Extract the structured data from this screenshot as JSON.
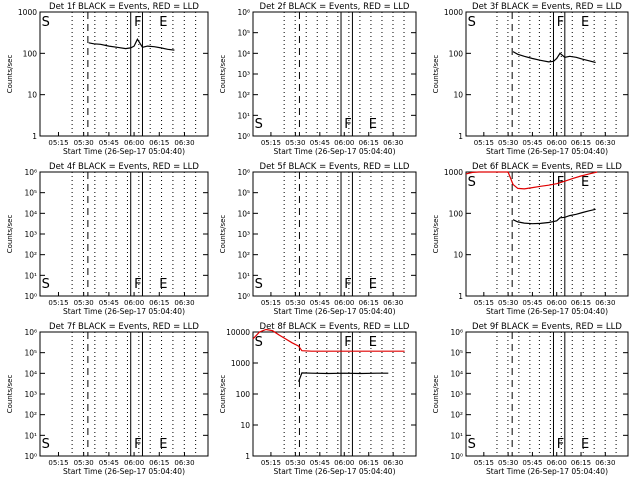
{
  "chart_data": [
    {
      "type": "line",
      "title": "Det 1f BLACK = Events, RED = LLD",
      "xlabel": "Start Time (26-Sep-17 05:04:40)",
      "ylabel": "Counts/sec",
      "log_y": true,
      "x_range": [
        "05:04",
        "06:44"
      ],
      "y_range": [
        1,
        1000
      ],
      "y_ticks": [
        "1",
        "10",
        "100",
        "1000"
      ],
      "x_ticks": [
        "05:15",
        "05:30",
        "05:45",
        "06:00",
        "06:15",
        "06:30"
      ],
      "markers": [
        {
          "label": "S",
          "x": "05:05"
        },
        {
          "label": "F",
          "x": "06:00"
        },
        {
          "label": "E",
          "x": "06:15"
        }
      ],
      "series": [
        {
          "color": "#000000",
          "x": [
            "05:33",
            "05:36",
            "05:40",
            "05:45",
            "05:50",
            "05:55",
            "05:58",
            "06:00",
            "06:02",
            "06:05",
            "06:08",
            "06:12",
            "06:16",
            "06:20",
            "06:24"
          ],
          "values": [
            180,
            170,
            165,
            150,
            140,
            130,
            135,
            150,
            220,
            140,
            150,
            145,
            135,
            125,
            120
          ]
        }
      ]
    },
    {
      "type": "line",
      "title": "Det 2f BLACK = Events, RED = LLD",
      "xlabel": "Start Time (26-Sep-17 05:04:40)",
      "ylabel": "Counts/sec",
      "log_y": true,
      "x_range": [
        "05:04",
        "06:44"
      ],
      "y_range": [
        1,
        1000000
      ],
      "y_ticks": [
        "10⁰",
        "10¹",
        "10²",
        "10³",
        "10⁴",
        "10⁵",
        "10⁶"
      ],
      "x_ticks": [
        "05:15",
        "05:30",
        "05:45",
        "06:00",
        "06:15",
        "06:30"
      ],
      "markers": [
        {
          "label": "S",
          "x": "05:05"
        },
        {
          "label": "F",
          "x": "06:00"
        },
        {
          "label": "E",
          "x": "06:15"
        }
      ],
      "series": []
    },
    {
      "type": "line",
      "title": "Det 3f BLACK = Events, RED = LLD",
      "xlabel": "Start Time (26-Sep-17 05:04:40)",
      "ylabel": "Counts/sec",
      "log_y": true,
      "x_range": [
        "05:04",
        "06:44"
      ],
      "y_range": [
        1,
        1000
      ],
      "y_ticks": [
        "1",
        "10",
        "100",
        "1000"
      ],
      "x_ticks": [
        "05:15",
        "05:30",
        "05:45",
        "06:00",
        "06:15",
        "06:30"
      ],
      "markers": [
        {
          "label": "S",
          "x": "05:05"
        },
        {
          "label": "F",
          "x": "06:00"
        },
        {
          "label": "E",
          "x": "06:15"
        }
      ],
      "series": [
        {
          "color": "#000000",
          "x": [
            "05:33",
            "05:36",
            "05:40",
            "05:45",
            "05:50",
            "05:55",
            "05:58",
            "06:00",
            "06:02",
            "06:05",
            "06:08",
            "06:12",
            "06:16",
            "06:20",
            "06:24"
          ],
          "values": [
            110,
            95,
            85,
            75,
            68,
            62,
            64,
            75,
            100,
            80,
            85,
            80,
            72,
            66,
            60
          ]
        }
      ]
    },
    {
      "type": "line",
      "title": "Det 4f BLACK = Events, RED = LLD",
      "xlabel": "Start Time (26-Sep-17 05:04:40)",
      "ylabel": "Counts/sec",
      "log_y": true,
      "x_range": [
        "05:04",
        "06:44"
      ],
      "y_range": [
        1,
        1000000
      ],
      "y_ticks": [
        "10⁰",
        "10¹",
        "10²",
        "10³",
        "10⁴",
        "10⁵",
        "10⁶"
      ],
      "x_ticks": [
        "05:15",
        "05:30",
        "05:45",
        "06:00",
        "06:15",
        "06:30"
      ],
      "markers": [
        {
          "label": "S",
          "x": "05:05"
        },
        {
          "label": "F",
          "x": "06:00"
        },
        {
          "label": "E",
          "x": "06:15"
        }
      ],
      "series": []
    },
    {
      "type": "line",
      "title": "Det 5f BLACK = Events, RED = LLD",
      "xlabel": "Start Time (26-Sep-17 05:04:40)",
      "ylabel": "Counts/sec",
      "log_y": true,
      "x_range": [
        "05:04",
        "06:44"
      ],
      "y_range": [
        1,
        1000000
      ],
      "y_ticks": [
        "10⁰",
        "10¹",
        "10²",
        "10³",
        "10⁴",
        "10⁵",
        "10⁶"
      ],
      "x_ticks": [
        "05:15",
        "05:30",
        "05:45",
        "06:00",
        "06:15",
        "06:30"
      ],
      "markers": [
        {
          "label": "S",
          "x": "05:05"
        },
        {
          "label": "F",
          "x": "06:00"
        },
        {
          "label": "E",
          "x": "06:15"
        }
      ],
      "series": []
    },
    {
      "type": "line",
      "title": "Det 6f BLACK = Events, RED = LLD",
      "xlabel": "Start Time (26-Sep-17 05:04:40)",
      "ylabel": "Counts/sec",
      "log_y": true,
      "x_range": [
        "05:04",
        "06:44"
      ],
      "y_range": [
        1,
        1000
      ],
      "y_ticks": [
        "1",
        "10",
        "100",
        "1000"
      ],
      "x_ticks": [
        "05:15",
        "05:30",
        "05:45",
        "06:00",
        "06:15",
        "06:30"
      ],
      "markers": [
        {
          "label": "S",
          "x": "05:05"
        },
        {
          "label": "F",
          "x": "06:00"
        },
        {
          "label": "E",
          "x": "06:15"
        }
      ],
      "series": [
        {
          "color": "#e00000",
          "x": [
            "05:04",
            "05:08",
            "05:12",
            "05:18",
            "05:24",
            "05:30",
            "05:33",
            "05:36",
            "05:40",
            "05:45",
            "05:50",
            "05:55",
            "06:00",
            "06:05",
            "06:10",
            "06:15",
            "06:20",
            "06:25"
          ],
          "values": [
            900,
            980,
            1000,
            1000,
            1000,
            1000,
            500,
            400,
            390,
            420,
            450,
            480,
            520,
            600,
            700,
            800,
            900,
            1000
          ]
        },
        {
          "color": "#000000",
          "x": [
            "05:33",
            "05:36",
            "05:40",
            "05:45",
            "05:50",
            "05:55",
            "05:58",
            "06:00",
            "06:02",
            "06:05",
            "06:08",
            "06:12",
            "06:16",
            "06:20",
            "06:24"
          ],
          "values": [
            70,
            62,
            58,
            56,
            57,
            60,
            63,
            66,
            78,
            80,
            88,
            95,
            105,
            115,
            125
          ]
        }
      ]
    },
    {
      "type": "line",
      "title": "Det 7f BLACK = Events, RED = LLD",
      "xlabel": "Start Time (26-Sep-17 05:04:40)",
      "ylabel": "Counts/sec",
      "log_y": true,
      "x_range": [
        "05:04",
        "06:44"
      ],
      "y_range": [
        1,
        1000000
      ],
      "y_ticks": [
        "10⁰",
        "10¹",
        "10²",
        "10³",
        "10⁴",
        "10⁵",
        "10⁶"
      ],
      "x_ticks": [
        "05:15",
        "05:30",
        "05:45",
        "06:00",
        "06:15",
        "06:30"
      ],
      "markers": [
        {
          "label": "S",
          "x": "05:05"
        },
        {
          "label": "F",
          "x": "06:00"
        },
        {
          "label": "E",
          "x": "06:15"
        }
      ],
      "series": []
    },
    {
      "type": "line",
      "title": "Det 8f BLACK = Events, RED = LLD",
      "xlabel": "Start Time (26-Sep-17 05:04:40)",
      "ylabel": "Counts/sec",
      "log_y": true,
      "x_range": [
        "05:04",
        "06:44"
      ],
      "y_range": [
        1,
        10000
      ],
      "y_ticks": [
        "1",
        "10",
        "100",
        "1000",
        "10000"
      ],
      "x_ticks": [
        "05:15",
        "05:30",
        "05:45",
        "06:00",
        "06:15",
        "06:30"
      ],
      "markers": [
        {
          "label": "S",
          "x": "05:05"
        },
        {
          "label": "F",
          "x": "06:00"
        },
        {
          "label": "E",
          "x": "06:15"
        }
      ],
      "series": [
        {
          "color": "#e00000",
          "x": [
            "05:04",
            "05:08",
            "05:12",
            "05:16",
            "05:20",
            "05:24",
            "05:28",
            "05:32",
            "05:34",
            "05:40",
            "05:50",
            "06:00",
            "06:10",
            "06:20",
            "06:30",
            "06:37"
          ],
          "values": [
            6000,
            10000,
            12000,
            11000,
            8000,
            6000,
            4500,
            3500,
            2500,
            2400,
            2400,
            2400,
            2400,
            2400,
            2400,
            2400
          ]
        },
        {
          "color": "#000000",
          "x": [
            "05:32",
            "05:34",
            "05:40",
            "05:50",
            "06:00",
            "06:10",
            "06:20",
            "06:27"
          ],
          "values": [
            250,
            480,
            470,
            460,
            470,
            460,
            470,
            470
          ]
        }
      ]
    },
    {
      "type": "line",
      "title": "Det 9f BLACK = Events, RED = LLD",
      "xlabel": "Start Time (26-Sep-17 05:04:40)",
      "ylabel": "Counts/sec",
      "log_y": true,
      "x_range": [
        "05:04",
        "06:44"
      ],
      "y_range": [
        1,
        1000000
      ],
      "y_ticks": [
        "10⁰",
        "10¹",
        "10²",
        "10³",
        "10⁴",
        "10⁵",
        "10⁶"
      ],
      "x_ticks": [
        "05:15",
        "05:30",
        "05:45",
        "06:00",
        "06:15",
        "06:30"
      ],
      "markers": [
        {
          "label": "S",
          "x": "05:05"
        },
        {
          "label": "F",
          "x": "06:00"
        },
        {
          "label": "E",
          "x": "06:15"
        }
      ],
      "series": []
    }
  ]
}
